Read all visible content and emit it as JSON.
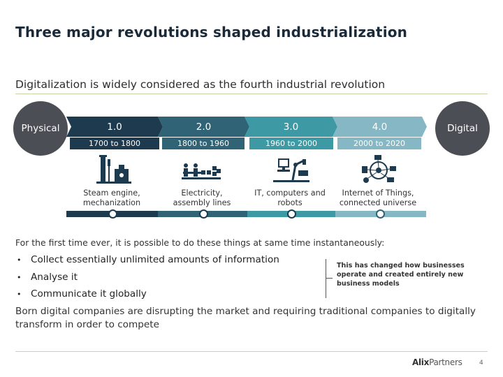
{
  "title": "Three major revolutions shaped industrialization",
  "subtitle": "Digitalization is widely considered as the fourth industrial revolution",
  "left_circle": "Physical",
  "right_circle": "Digital",
  "revolutions": [
    {
      "number": "1.0",
      "years": "1700 to 1800",
      "label_1": "Steam engine,",
      "label_2": "mechanization",
      "color": "#1d3a4f",
      "icon": "factory-icon"
    },
    {
      "number": "2.0",
      "years": "1800 to 1960",
      "label_1": "Electricity,",
      "label_2": "assembly lines",
      "color": "#2f6375",
      "icon": "assembly-line-icon"
    },
    {
      "number": "3.0",
      "years": "1960 to 2000",
      "label_1": "IT, computers and",
      "label_2": "robots",
      "color": "#3d9aa5",
      "icon": "robot-computer-icon"
    },
    {
      "number": "4.0",
      "years": "2000 to 2020",
      "label_1": "Internet of Things,",
      "label_2": "connected universe",
      "color": "#86b7c4",
      "icon": "iot-network-icon"
    }
  ],
  "body": {
    "intro": "For the first time ever, it is possible to do these things at same time instantaneously:",
    "bullets": [
      "Collect essentially unlimited amounts of information",
      "Analyse it",
      "Communicate it globally"
    ],
    "callout": "This has changed how businesses operate and created entirely new business models",
    "paragraph": "Born digital companies are disrupting the market and requiring traditional companies to digitally transform in order to compete"
  },
  "footer": {
    "logo_bold": "Alix",
    "logo_rest": "Partners",
    "page_number": "4"
  }
}
